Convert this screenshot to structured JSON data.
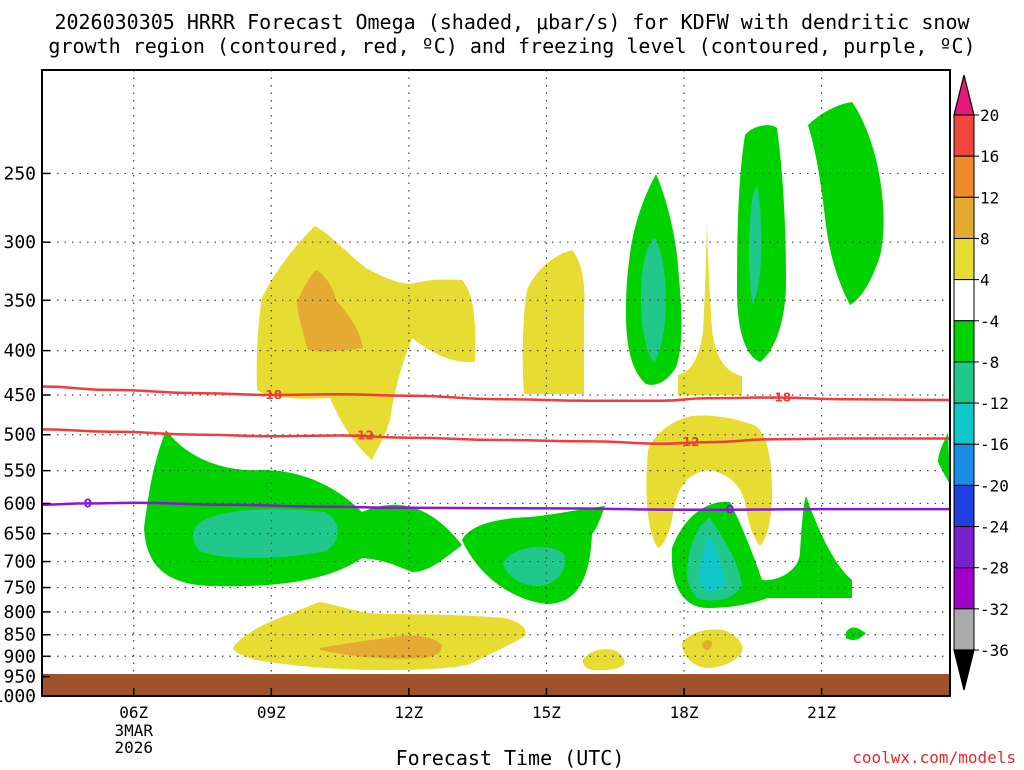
{
  "chart_data": {
    "type": "time-height cross-section",
    "title_line1": "2026030305 HRRR Forecast Omega (shaded, μbar/s) for KDFW with dendritic snow",
    "title_line2": "growth region (contoured, red, ºC) and freezing level (contoured, purple, ºC)",
    "xlabel": "Forecast Time (UTC)",
    "credit": "coolwx.com/models",
    "x_range_hours": [
      4.0,
      23.8
    ],
    "x_ticks": [
      {
        "hour": 6,
        "label": "06Z",
        "sub": [
          "3MAR",
          "2026"
        ]
      },
      {
        "hour": 9,
        "label": "09Z"
      },
      {
        "hour": 12,
        "label": "12Z"
      },
      {
        "hour": 15,
        "label": "15Z"
      },
      {
        "hour": 18,
        "label": "18Z"
      },
      {
        "hour": 21,
        "label": "21Z"
      }
    ],
    "y_levels_hpa": [
      250,
      300,
      350,
      400,
      450,
      500,
      550,
      600,
      650,
      700,
      750,
      800,
      850,
      900,
      950,
      1000
    ],
    "y_range_hpa": [
      1000,
      190
    ],
    "colorbar": {
      "labels": [
        "20",
        "16",
        "12",
        "8",
        "4",
        "-4",
        "-8",
        "-12",
        "-16",
        "-20",
        "-24",
        "-28",
        "-32",
        "-36"
      ],
      "bins": [
        {
          "lo": 16,
          "hi": 20,
          "color": "#f0463c"
        },
        {
          "lo": 12,
          "hi": 16,
          "color": "#ee8a2a"
        },
        {
          "lo": 8,
          "hi": 12,
          "color": "#e4aa32"
        },
        {
          "lo": 4,
          "hi": 8,
          "color": "#e6dc32"
        },
        {
          "lo": -4,
          "hi": 4,
          "color": "#ffffff"
        },
        {
          "lo": -8,
          "hi": -4,
          "color": "#00d200"
        },
        {
          "lo": -12,
          "hi": -8,
          "color": "#20c88c"
        },
        {
          "lo": -16,
          "hi": -12,
          "color": "#10c6c8"
        },
        {
          "lo": -20,
          "hi": -16,
          "color": "#1a8ce6"
        },
        {
          "lo": -24,
          "hi": -20,
          "color": "#2040e0"
        },
        {
          "lo": -28,
          "hi": -24,
          "color": "#7820d0"
        },
        {
          "lo": -32,
          "hi": -28,
          "color": "#a000c8"
        },
        {
          "lo": -36,
          "hi": -32,
          "color": "#aaaaaa"
        }
      ],
      "over_color": "#e6187a",
      "under_color": "#000000"
    },
    "contours": [
      {
        "name": "dgz-minus18",
        "label": "-18",
        "color": "#f03c3c",
        "points": [
          [
            4.0,
            440
          ],
          [
            5.5,
            444
          ],
          [
            7.5,
            448
          ],
          [
            9.0,
            450
          ],
          [
            10.5,
            449
          ],
          [
            12.0,
            451
          ],
          [
            14.0,
            455
          ],
          [
            16.0,
            457
          ],
          [
            17.5,
            457
          ],
          [
            18.5,
            454
          ],
          [
            20.0,
            453
          ],
          [
            21.5,
            455
          ],
          [
            23.8,
            456
          ]
        ],
        "label_at": [
          [
            9.0,
            450
          ],
          [
            20.1,
            453
          ]
        ]
      },
      {
        "name": "dgz-minus12",
        "label": "-12",
        "color": "#f03c3c",
        "points": [
          [
            4.0,
            493
          ],
          [
            5.5,
            496
          ],
          [
            7.5,
            500
          ],
          [
            9.0,
            502
          ],
          [
            10.5,
            501
          ],
          [
            12.0,
            504
          ],
          [
            14.0,
            507
          ],
          [
            16.0,
            509
          ],
          [
            17.5,
            512
          ],
          [
            18.5,
            510
          ],
          [
            20.0,
            506
          ],
          [
            21.5,
            505
          ],
          [
            23.8,
            505
          ]
        ],
        "label_at": [
          [
            11.0,
            501
          ],
          [
            18.1,
            510
          ]
        ]
      },
      {
        "name": "freezing-level",
        "label": "0",
        "color": "#8a18d2",
        "points": [
          [
            4.0,
            602
          ],
          [
            5.0,
            600
          ],
          [
            6.0,
            599
          ],
          [
            8.0,
            602
          ],
          [
            10.0,
            605
          ],
          [
            12.0,
            607
          ],
          [
            15.0,
            608
          ],
          [
            18.0,
            610
          ],
          [
            19.0,
            610
          ],
          [
            21.0,
            609
          ],
          [
            23.8,
            609
          ]
        ],
        "label_at": [
          [
            5.0,
            600
          ],
          [
            19.0,
            610
          ]
        ]
      }
    ]
  }
}
